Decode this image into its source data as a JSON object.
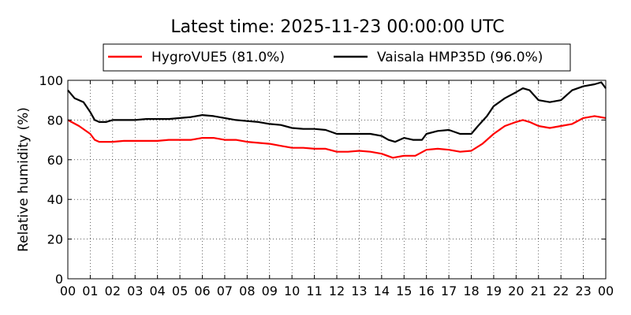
{
  "chart_data": {
    "type": "line",
    "title": "Latest time: 2025-11-23 00:00:00 UTC",
    "xlabel": "",
    "ylabel": "Relative humidity (%)",
    "xlim": [
      0,
      24
    ],
    "ylim": [
      0,
      100
    ],
    "grid": true,
    "legend_position": "top",
    "x_ticks": [
      0,
      1,
      2,
      3,
      4,
      5,
      6,
      7,
      8,
      9,
      10,
      11,
      12,
      13,
      14,
      15,
      16,
      17,
      18,
      19,
      20,
      21,
      22,
      23,
      24
    ],
    "x_tick_labels": [
      "00",
      "01",
      "02",
      "03",
      "04",
      "05",
      "06",
      "07",
      "08",
      "09",
      "10",
      "11",
      "12",
      "13",
      "14",
      "15",
      "16",
      "17",
      "18",
      "19",
      "20",
      "21",
      "22",
      "23",
      "00"
    ],
    "y_ticks": [
      0,
      20,
      40,
      60,
      80,
      100
    ],
    "y_tick_labels": [
      "0",
      "20",
      "40",
      "60",
      "80",
      "100"
    ],
    "series": [
      {
        "name": "HygroVUE5 (81.0%)",
        "color": "#ff0000",
        "x": [
          0,
          0.5,
          1,
          1.2,
          1.4,
          1.7,
          2,
          2.5,
          3,
          3.5,
          4,
          4.5,
          5,
          5.5,
          6,
          6.5,
          7,
          7.5,
          8,
          8.5,
          9,
          9.5,
          10,
          10.5,
          11,
          11.5,
          12,
          12.5,
          13,
          13.5,
          14,
          14.5,
          15,
          15.5,
          16,
          16.5,
          17,
          17.5,
          18,
          18.5,
          19,
          19.5,
          20,
          20.3,
          20.6,
          21,
          21.5,
          22,
          22.5,
          23,
          23.5,
          24
        ],
        "y": [
          80,
          77,
          73,
          70,
          69,
          69,
          69,
          69.5,
          69.5,
          69.5,
          69.5,
          70,
          70,
          70,
          71,
          71,
          70,
          70,
          69,
          68.5,
          68,
          67,
          66,
          66,
          65.5,
          65.5,
          64,
          64,
          64.5,
          64,
          63,
          61,
          62,
          62,
          65,
          65.5,
          65,
          64,
          64.5,
          68,
          73,
          77,
          79,
          80,
          79,
          77,
          76,
          77,
          78,
          81,
          82,
          81
        ]
      },
      {
        "name": "Vaisala HMP35D (96.0%)",
        "color": "#000000",
        "x": [
          0,
          0.3,
          0.7,
          1,
          1.2,
          1.4,
          1.7,
          2,
          2.5,
          3,
          3.5,
          4,
          4.5,
          5,
          5.5,
          6,
          6.5,
          7,
          7.5,
          8,
          8.5,
          9,
          9.5,
          10,
          10.5,
          11,
          11.5,
          12,
          12.5,
          13,
          13.5,
          14,
          14.3,
          14.6,
          15,
          15.4,
          15.8,
          16,
          16.5,
          17,
          17.5,
          18,
          18.3,
          18.7,
          19,
          19.5,
          20,
          20.3,
          20.6,
          21,
          21.5,
          22,
          22.5,
          23,
          23.5,
          23.8,
          24
        ],
        "y": [
          95,
          91,
          89,
          84,
          80,
          79,
          79,
          80,
          80,
          80,
          80.5,
          80.5,
          80.5,
          81,
          81.5,
          82.5,
          82,
          81,
          80,
          79.5,
          79,
          78,
          77.5,
          76,
          75.5,
          75.5,
          75,
          73,
          73,
          73,
          73,
          72,
          70,
          69,
          71,
          70,
          70,
          73,
          74.5,
          75,
          73,
          73,
          77,
          82,
          87,
          91,
          94,
          96,
          95,
          90,
          89,
          90,
          95,
          97,
          98,
          99,
          96
        ]
      }
    ]
  }
}
